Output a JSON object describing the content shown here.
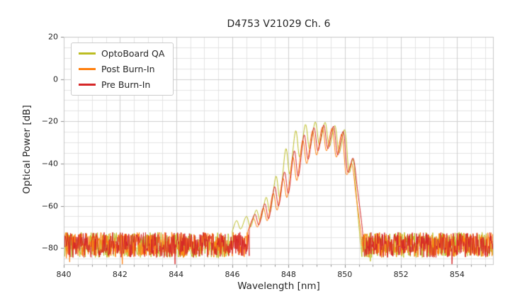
{
  "chart_data": {
    "type": "line",
    "title": "D4753 V21029 Ch. 6",
    "xlabel": "Wavelength [nm]",
    "ylabel": "Optical Power [dB]",
    "xlim": [
      840,
      855.3
    ],
    "ylim": [
      -88,
      20
    ],
    "xticks": [
      840,
      842,
      844,
      846,
      848,
      850,
      852,
      854
    ],
    "yticks": [
      -80,
      -60,
      -40,
      -20,
      0,
      20
    ],
    "minor_x_step": 0.5,
    "minor_y_step": 5,
    "grid": true,
    "legend_position": "upper-left",
    "noise_floor_db": -78.5,
    "noise_amplitude_db": 6,
    "series": [
      {
        "name": "OptoBoard QA",
        "color": "#bcbd22",
        "feature": [
          [
            846.0,
            -72
          ],
          [
            846.15,
            -67
          ],
          [
            846.3,
            -71
          ],
          [
            846.5,
            -65
          ],
          [
            846.65,
            -70
          ],
          [
            846.85,
            -62
          ],
          [
            847.0,
            -67
          ],
          [
            847.2,
            -56
          ],
          [
            847.35,
            -63
          ],
          [
            847.55,
            -46
          ],
          [
            847.7,
            -56
          ],
          [
            847.9,
            -33
          ],
          [
            848.05,
            -45
          ],
          [
            848.25,
            -24.5
          ],
          [
            848.4,
            -37
          ],
          [
            848.6,
            -21.5
          ],
          [
            848.75,
            -33
          ],
          [
            848.95,
            -20.3
          ],
          [
            849.1,
            -31
          ],
          [
            849.3,
            -20.5
          ],
          [
            849.45,
            -32
          ],
          [
            849.65,
            -22
          ],
          [
            849.8,
            -35
          ],
          [
            850.0,
            -24
          ],
          [
            850.15,
            -44
          ],
          [
            850.3,
            -38
          ],
          [
            850.42,
            -56
          ],
          [
            850.52,
            -72
          ],
          [
            850.58,
            -79
          ]
        ]
      },
      {
        "name": "Post Burn-In",
        "color": "#ff7f0e",
        "feature": [
          [
            846.55,
            -72
          ],
          [
            846.75,
            -66
          ],
          [
            846.9,
            -70
          ],
          [
            847.1,
            -61
          ],
          [
            847.25,
            -67
          ],
          [
            847.45,
            -54
          ],
          [
            847.6,
            -62
          ],
          [
            847.8,
            -47
          ],
          [
            847.95,
            -56
          ],
          [
            848.15,
            -37
          ],
          [
            848.3,
            -48
          ],
          [
            848.5,
            -29
          ],
          [
            848.65,
            -40
          ],
          [
            848.85,
            -24.5
          ],
          [
            849.0,
            -36
          ],
          [
            849.2,
            -22.8
          ],
          [
            849.35,
            -34
          ],
          [
            849.55,
            -23.2
          ],
          [
            849.7,
            -37
          ],
          [
            849.9,
            -26
          ],
          [
            850.05,
            -45
          ],
          [
            850.25,
            -40
          ],
          [
            850.4,
            -55
          ],
          [
            850.55,
            -70
          ],
          [
            850.62,
            -79
          ]
        ]
      },
      {
        "name": "Pre Burn-In",
        "color": "#d62728",
        "feature": [
          [
            846.6,
            -71
          ],
          [
            846.8,
            -64
          ],
          [
            846.95,
            -69
          ],
          [
            847.15,
            -59
          ],
          [
            847.3,
            -66
          ],
          [
            847.5,
            -51
          ],
          [
            847.65,
            -60
          ],
          [
            847.85,
            -44
          ],
          [
            848.0,
            -54
          ],
          [
            848.2,
            -34
          ],
          [
            848.35,
            -46
          ],
          [
            848.55,
            -26.5
          ],
          [
            848.7,
            -38
          ],
          [
            848.9,
            -23
          ],
          [
            849.05,
            -34
          ],
          [
            849.25,
            -21.8
          ],
          [
            849.4,
            -33
          ],
          [
            849.6,
            -22.3
          ],
          [
            849.75,
            -36
          ],
          [
            849.95,
            -24.8
          ],
          [
            850.1,
            -44
          ],
          [
            850.3,
            -37.5
          ],
          [
            850.45,
            -52
          ],
          [
            850.6,
            -68
          ],
          [
            850.68,
            -79
          ]
        ]
      }
    ]
  }
}
